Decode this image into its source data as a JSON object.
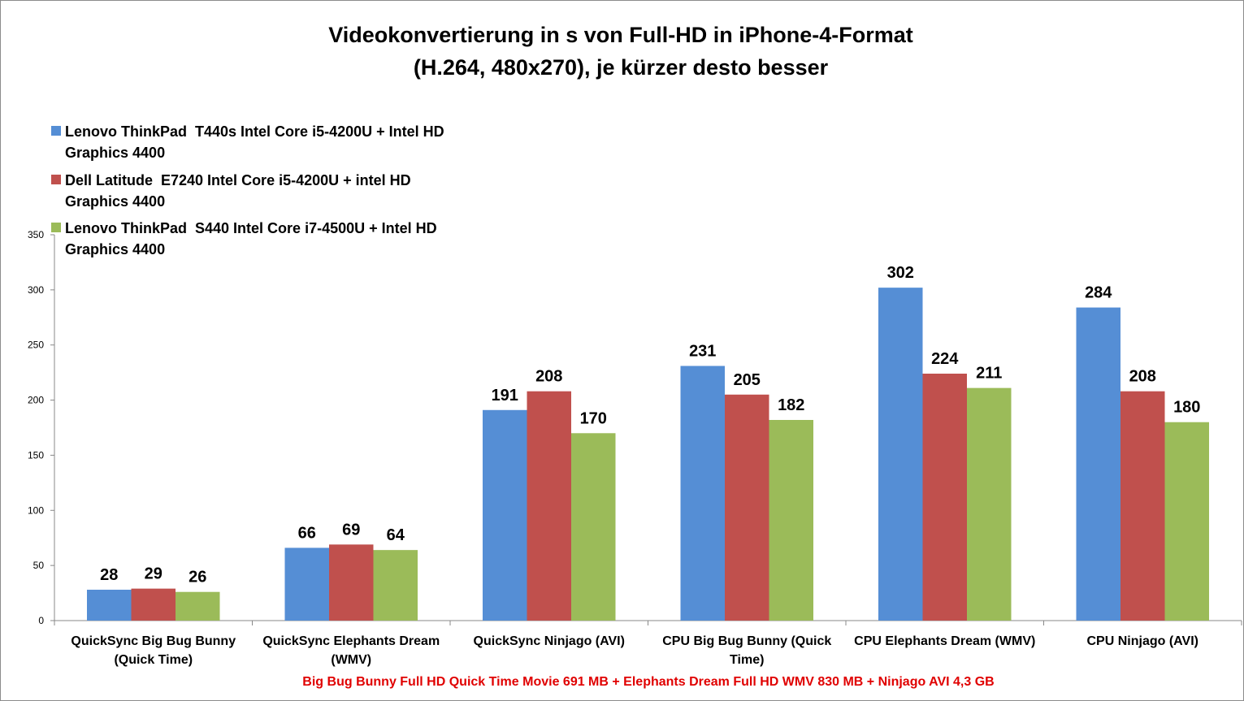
{
  "chart_data": {
    "type": "bar",
    "title_lines": [
      "Videokonvertierung in s von Full-HD in iPhone-4-Format",
      "(H.264, 480x270), je kürzer desto besser"
    ],
    "categories": [
      [
        "QuickSync Big Bug Bunny",
        "(Quick Time)"
      ],
      [
        "QuickSync Elephants Dream",
        "(WMV)"
      ],
      [
        "QuickSync Ninjago (AVI)"
      ],
      [
        "CPU Big Bug Bunny (Quick",
        "Time)"
      ],
      [
        "CPU Elephants Dream (WMV)"
      ],
      [
        "CPU Ninjago (AVI)"
      ]
    ],
    "series": [
      {
        "name_lines": [
          "Lenovo ThinkPad  T440s Intel Core i5-4200U + Intel HD",
          "Graphics 4400"
        ],
        "color": "#558ED5",
        "values": [
          28,
          66,
          191,
          231,
          302,
          284
        ]
      },
      {
        "name_lines": [
          "Dell Latitude  E7240 Intel Core i5-4200U + intel HD",
          "Graphics 4400"
        ],
        "color": "#C0504D",
        "values": [
          29,
          69,
          208,
          205,
          224,
          208
        ]
      },
      {
        "name_lines": [
          "Lenovo ThinkPad  S440 Intel Core i7-4500U + Intel HD",
          "Graphics 4400"
        ],
        "color": "#9BBB59",
        "values": [
          26,
          64,
          170,
          182,
          211,
          180
        ]
      }
    ],
    "ylim": [
      0,
      350
    ],
    "yticks": [
      0,
      50,
      100,
      150,
      200,
      250,
      300,
      350
    ],
    "grid": false,
    "legend_position": "top-left",
    "footnote": "Big Bug Bunny Full HD Quick Time Movie 691 MB + Elephants Dream Full HD WMV 830 MB + Ninjago AVI 4,3 GB",
    "footnote_color": "#E00000",
    "axis_color": "#888888"
  }
}
